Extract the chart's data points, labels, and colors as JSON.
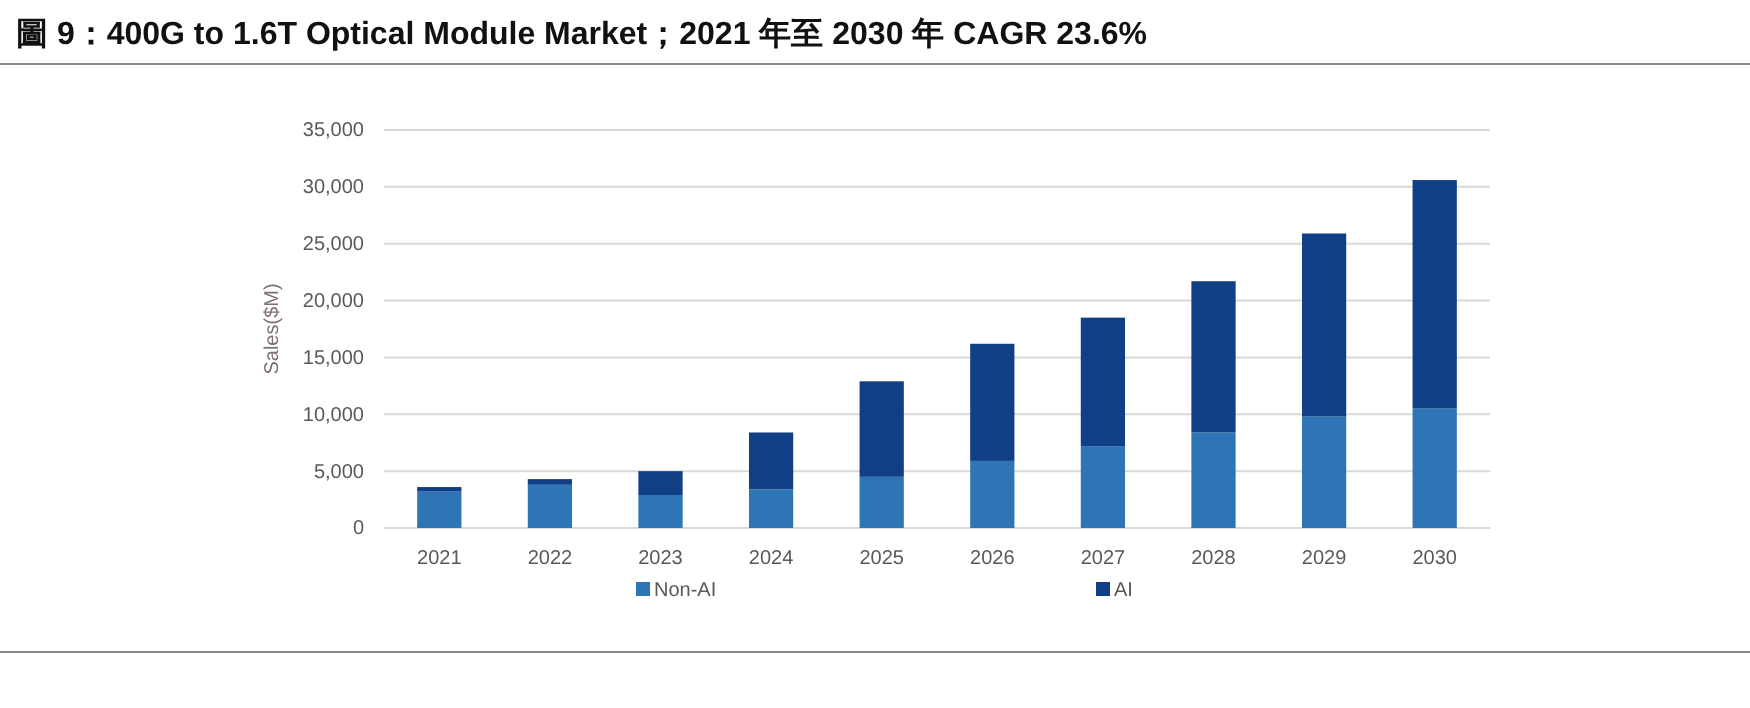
{
  "chart_data": {
    "type": "bar",
    "stacked": true,
    "title": "圖 9：400G to 1.6T Optical Module Market；2021 年至 2030 年 CAGR 23.6%",
    "ylabel": "Sales($M)",
    "categories": [
      "2021",
      "2022",
      "2023",
      "2024",
      "2025",
      "2026",
      "2027",
      "2028",
      "2029",
      "2030"
    ],
    "series": [
      {
        "name": "Non-AI",
        "color": "#2e75b6",
        "values": [
          3200,
          3800,
          2900,
          3400,
          4500,
          5900,
          7200,
          8400,
          9800,
          10500
        ]
      },
      {
        "name": "AI",
        "color": "#103f85",
        "values": [
          400,
          500,
          2100,
          5000,
          8400,
          10300,
          11300,
          13300,
          16100,
          20100
        ]
      }
    ],
    "ylim": [
      0,
      35000
    ],
    "yticks": [
      {
        "value": 0,
        "label": "0"
      },
      {
        "value": 5000,
        "label": "5,000"
      },
      {
        "value": 10000,
        "label": "10,000"
      },
      {
        "value": 15000,
        "label": "15,000"
      },
      {
        "value": 20000,
        "label": "20,000"
      },
      {
        "value": 25000,
        "label": "25,000"
      },
      {
        "value": 30000,
        "label": "30,000"
      },
      {
        "value": 35000,
        "label": "35,000"
      }
    ],
    "grid": "y",
    "legend": "bottom"
  }
}
